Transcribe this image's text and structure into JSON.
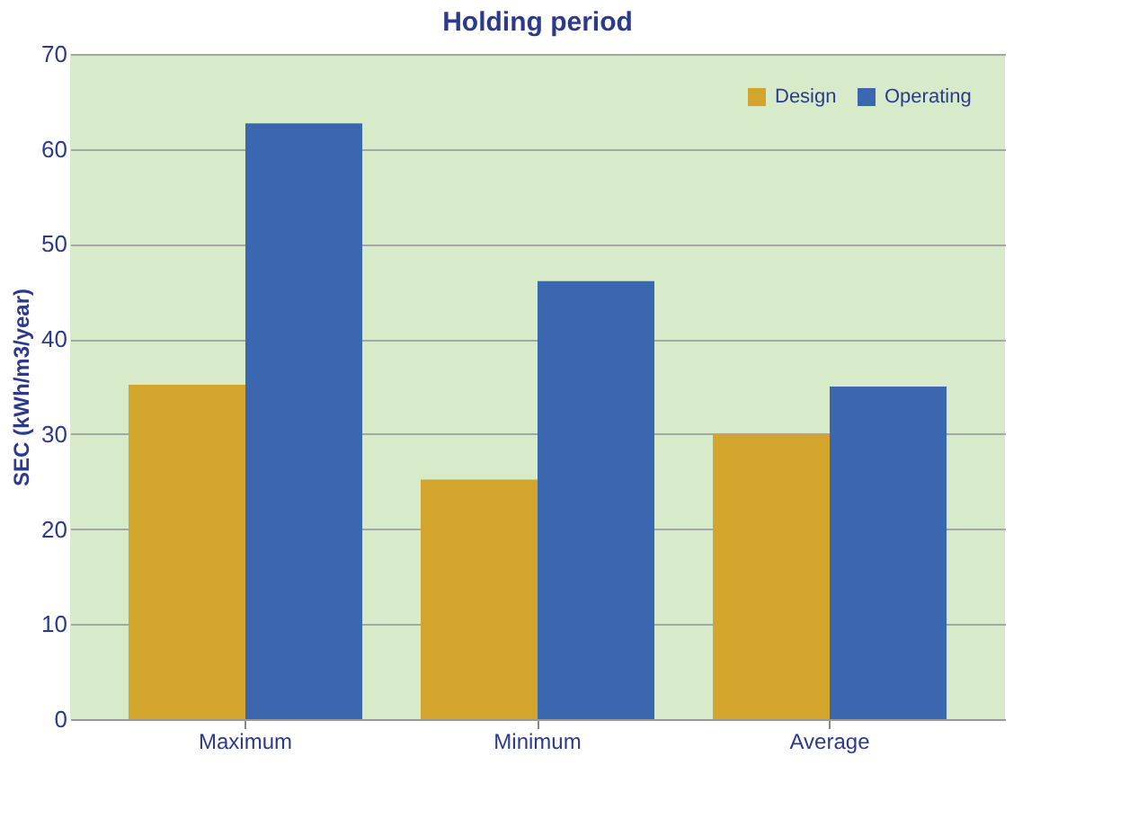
{
  "chart_data": {
    "type": "bar",
    "title": "Holding period",
    "ylabel": "SEC (kWh/m3/year)",
    "categories": [
      "Maximum",
      "Minimum",
      "Average"
    ],
    "series": [
      {
        "name": "Design",
        "color": "#d4a52c",
        "values": [
          35.2,
          25.2,
          30
        ]
      },
      {
        "name": "Operating",
        "color": "#3a67b0",
        "values": [
          62.7,
          46.1,
          35
        ]
      }
    ],
    "ylim": [
      0,
      70
    ],
    "yticks": [
      0,
      10,
      20,
      30,
      40,
      50,
      60,
      70
    ],
    "grid": "y",
    "legend": "top right"
  }
}
